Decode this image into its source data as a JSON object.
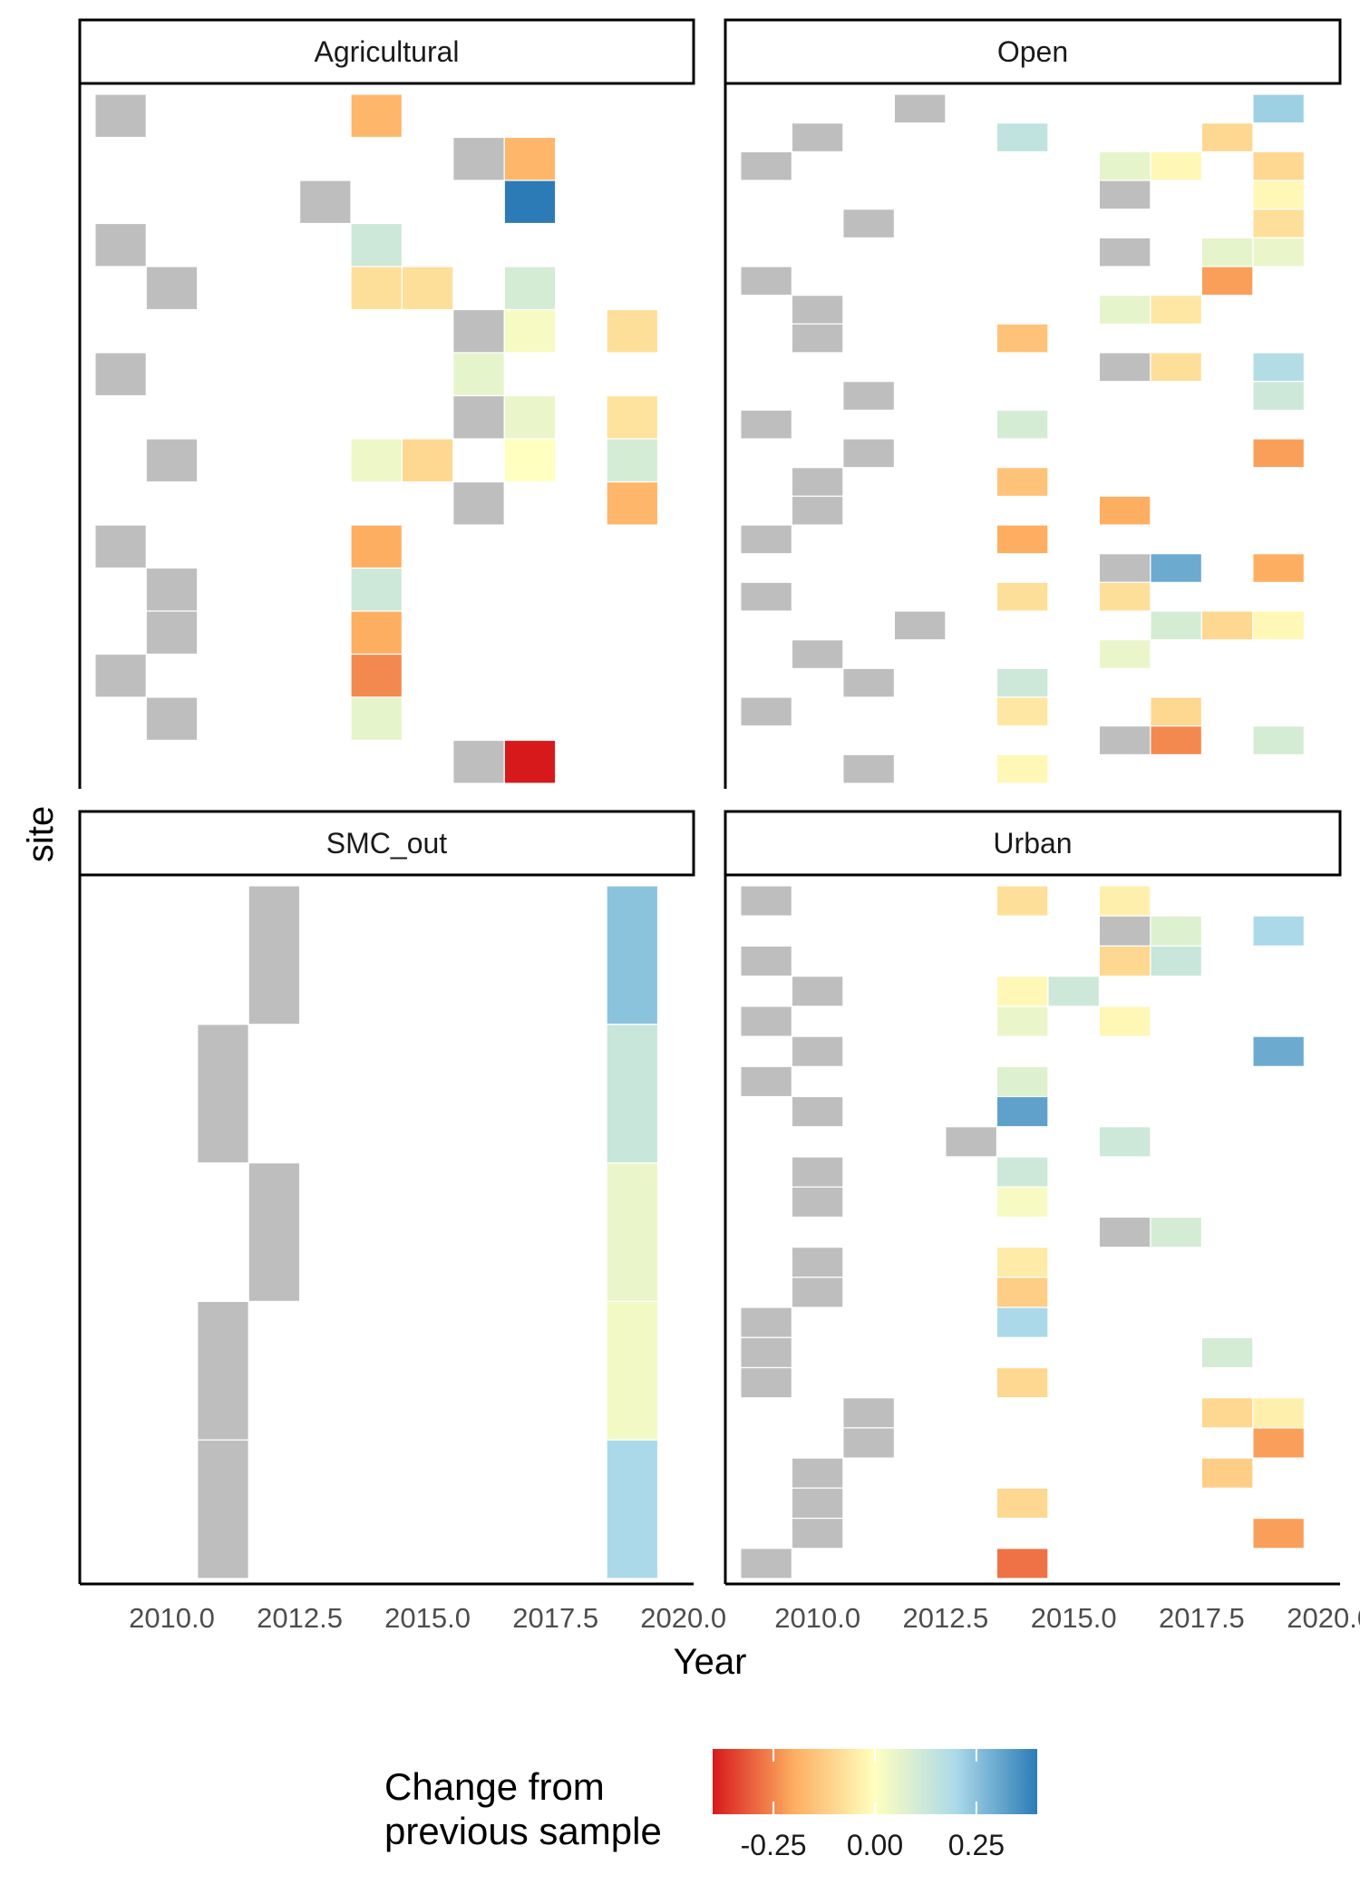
{
  "chart_data": {
    "type": "heatmap",
    "xlabel": "Year",
    "ylabel": "site",
    "x_ticks": [
      "2010.0",
      "2012.5",
      "2015.0",
      "2017.5",
      "2020.0"
    ],
    "x_tick_values": [
      2010,
      2012.5,
      2015,
      2017.5,
      2020
    ],
    "xlim": [
      2008.2,
      2020.2
    ],
    "tile_width_years": 1,
    "baseline_color": "#bebebe",
    "legend": {
      "title_lines": [
        "Change from",
        "previous sample"
      ],
      "ticks": [
        "-0.25",
        "0.00",
        "0.25"
      ],
      "tick_values": [
        -0.25,
        0,
        0.25
      ],
      "range": [
        -0.4,
        0.4
      ],
      "palette": [
        "#d7191c",
        "#fdae61",
        "#ffffbf",
        "#abd9e9",
        "#2c7bb6"
      ],
      "position": "bottom"
    },
    "panels": [
      {
        "label": "Agricultural",
        "n_rows": 16,
        "tiles": [
          {
            "row": 0,
            "year": 2009,
            "baseline": true
          },
          {
            "row": 0,
            "year": 2014,
            "value": -0.18
          },
          {
            "row": 1,
            "year": 2016,
            "baseline": true
          },
          {
            "row": 1,
            "year": 2017,
            "value": -0.18
          },
          {
            "row": 2,
            "year": 2013,
            "baseline": true
          },
          {
            "row": 2,
            "year": 2017,
            "value": 0.4
          },
          {
            "row": 3,
            "year": 2009,
            "baseline": true
          },
          {
            "row": 3,
            "year": 2014,
            "value": 0.12
          },
          {
            "row": 4,
            "year": 2010,
            "baseline": true
          },
          {
            "row": 4,
            "year": 2014,
            "value": -0.08
          },
          {
            "row": 4,
            "year": 2015,
            "value": -0.08
          },
          {
            "row": 4,
            "year": 2017,
            "value": 0.1
          },
          {
            "row": 5,
            "year": 2016,
            "baseline": true
          },
          {
            "row": 5,
            "year": 2017,
            "value": 0.02
          },
          {
            "row": 5,
            "year": 2019,
            "value": -0.08
          },
          {
            "row": 6,
            "year": 2009,
            "baseline": true
          },
          {
            "row": 6,
            "year": 2016,
            "value": 0.06
          },
          {
            "row": 7,
            "year": 2016,
            "baseline": true
          },
          {
            "row": 7,
            "year": 2017,
            "value": 0.05
          },
          {
            "row": 7,
            "year": 2019,
            "value": -0.07
          },
          {
            "row": 8,
            "year": 2010,
            "baseline": true
          },
          {
            "row": 8,
            "year": 2014,
            "value": 0.04
          },
          {
            "row": 8,
            "year": 2015,
            "value": -0.1
          },
          {
            "row": 8,
            "year": 2017,
            "value": 0.0
          },
          {
            "row": 8,
            "year": 2019,
            "value": 0.1
          },
          {
            "row": 9,
            "year": 2016,
            "baseline": true
          },
          {
            "row": 9,
            "year": 2019,
            "value": -0.18
          },
          {
            "row": 10,
            "year": 2009,
            "baseline": true
          },
          {
            "row": 10,
            "year": 2014,
            "value": -0.2
          },
          {
            "row": 11,
            "year": 2010,
            "baseline": true
          },
          {
            "row": 11,
            "year": 2014,
            "value": 0.12
          },
          {
            "row": 12,
            "year": 2010,
            "baseline": true
          },
          {
            "row": 12,
            "year": 2014,
            "value": -0.2
          },
          {
            "row": 13,
            "year": 2009,
            "baseline": true
          },
          {
            "row": 13,
            "year": 2014,
            "value": -0.25
          },
          {
            "row": 14,
            "year": 2010,
            "baseline": true
          },
          {
            "row": 14,
            "year": 2014,
            "value": 0.06
          },
          {
            "row": 15,
            "year": 2016,
            "baseline": true
          },
          {
            "row": 15,
            "year": 2017,
            "value": -0.4
          }
        ]
      },
      {
        "label": "Open",
        "n_rows": 24,
        "tiles": [
          {
            "row": 0,
            "year": 2012,
            "baseline": true
          },
          {
            "row": 0,
            "year": 2019,
            "value": 0.22
          },
          {
            "row": 1,
            "year": 2010,
            "baseline": true
          },
          {
            "row": 1,
            "year": 2014,
            "value": 0.15
          },
          {
            "row": 1,
            "year": 2018,
            "value": -0.1
          },
          {
            "row": 2,
            "year": 2009,
            "baseline": true
          },
          {
            "row": 2,
            "year": 2016,
            "value": 0.06
          },
          {
            "row": 2,
            "year": 2017,
            "value": -0.02
          },
          {
            "row": 2,
            "year": 2019,
            "value": -0.1
          },
          {
            "row": 3,
            "year": 2016,
            "baseline": true
          },
          {
            "row": 3,
            "year": 2019,
            "value": -0.02
          },
          {
            "row": 4,
            "year": 2011,
            "baseline": true
          },
          {
            "row": 4,
            "year": 2019,
            "value": -0.08
          },
          {
            "row": 5,
            "year": 2016,
            "baseline": true
          },
          {
            "row": 5,
            "year": 2018,
            "value": 0.06
          },
          {
            "row": 5,
            "year": 2019,
            "value": 0.05
          },
          {
            "row": 6,
            "year": 2009,
            "baseline": true
          },
          {
            "row": 6,
            "year": 2018,
            "value": -0.22
          },
          {
            "row": 7,
            "year": 2010,
            "baseline": true
          },
          {
            "row": 7,
            "year": 2016,
            "value": 0.06
          },
          {
            "row": 7,
            "year": 2017,
            "value": -0.06
          },
          {
            "row": 8,
            "year": 2010,
            "baseline": true
          },
          {
            "row": 8,
            "year": 2014,
            "value": -0.15
          },
          {
            "row": 9,
            "year": 2016,
            "baseline": true
          },
          {
            "row": 9,
            "year": 2017,
            "value": -0.08
          },
          {
            "row": 9,
            "year": 2019,
            "value": 0.18
          },
          {
            "row": 10,
            "year": 2011,
            "baseline": true
          },
          {
            "row": 10,
            "year": 2019,
            "value": 0.12
          },
          {
            "row": 11,
            "year": 2009,
            "baseline": true
          },
          {
            "row": 11,
            "year": 2014,
            "value": 0.1
          },
          {
            "row": 12,
            "year": 2011,
            "baseline": true
          },
          {
            "row": 12,
            "year": 2019,
            "value": -0.22
          },
          {
            "row": 13,
            "year": 2010,
            "baseline": true
          },
          {
            "row": 13,
            "year": 2014,
            "value": -0.15
          },
          {
            "row": 14,
            "year": 2010,
            "baseline": true
          },
          {
            "row": 14,
            "year": 2016,
            "value": -0.2
          },
          {
            "row": 15,
            "year": 2009,
            "baseline": true
          },
          {
            "row": 15,
            "year": 2014,
            "value": -0.2
          },
          {
            "row": 16,
            "year": 2016,
            "baseline": true
          },
          {
            "row": 16,
            "year": 2017,
            "value": 0.3
          },
          {
            "row": 16,
            "year": 2019,
            "value": -0.2
          },
          {
            "row": 17,
            "year": 2009,
            "baseline": true
          },
          {
            "row": 17,
            "year": 2014,
            "value": -0.08
          },
          {
            "row": 17,
            "year": 2016,
            "value": -0.08
          },
          {
            "row": 18,
            "year": 2012,
            "baseline": true
          },
          {
            "row": 18,
            "year": 2017,
            "value": 0.1
          },
          {
            "row": 18,
            "year": 2018,
            "value": -0.1
          },
          {
            "row": 18,
            "year": 2019,
            "value": -0.02
          },
          {
            "row": 19,
            "year": 2010,
            "baseline": true
          },
          {
            "row": 19,
            "year": 2016,
            "value": 0.05
          },
          {
            "row": 20,
            "year": 2011,
            "baseline": true
          },
          {
            "row": 20,
            "year": 2014,
            "value": 0.12
          },
          {
            "row": 21,
            "year": 2009,
            "baseline": true
          },
          {
            "row": 21,
            "year": 2014,
            "value": -0.06
          },
          {
            "row": 21,
            "year": 2017,
            "value": -0.1
          },
          {
            "row": 22,
            "year": 2016,
            "baseline": true
          },
          {
            "row": 22,
            "year": 2017,
            "value": -0.25
          },
          {
            "row": 22,
            "year": 2019,
            "value": 0.1
          },
          {
            "row": 23,
            "year": 2011,
            "baseline": true
          },
          {
            "row": 23,
            "year": 2014,
            "value": -0.02
          }
        ]
      },
      {
        "label": "SMC_out",
        "n_rows": 5,
        "tiles": [
          {
            "row": 0,
            "year": 2012,
            "baseline": true
          },
          {
            "row": 0,
            "year": 2019,
            "value": 0.25
          },
          {
            "row": 1,
            "year": 2011,
            "baseline": true
          },
          {
            "row": 1,
            "year": 2019,
            "value": 0.13
          },
          {
            "row": 2,
            "year": 2012,
            "baseline": true
          },
          {
            "row": 2,
            "year": 2019,
            "value": 0.05
          },
          {
            "row": 3,
            "year": 2011,
            "baseline": true
          },
          {
            "row": 3,
            "year": 2019,
            "value": 0.03
          },
          {
            "row": 4,
            "year": 2011,
            "baseline": true
          },
          {
            "row": 4,
            "year": 2019,
            "value": 0.2
          }
        ]
      },
      {
        "label": "Urban",
        "n_rows": 23,
        "tiles": [
          {
            "row": 0,
            "year": 2009,
            "baseline": true
          },
          {
            "row": 0,
            "year": 2014,
            "value": -0.08
          },
          {
            "row": 0,
            "year": 2016,
            "value": -0.04
          },
          {
            "row": 1,
            "year": 2016,
            "baseline": true
          },
          {
            "row": 1,
            "year": 2017,
            "value": 0.08
          },
          {
            "row": 1,
            "year": 2019,
            "value": 0.2
          },
          {
            "row": 2,
            "year": 2009,
            "baseline": true
          },
          {
            "row": 2,
            "year": 2016,
            "value": -0.1
          },
          {
            "row": 2,
            "year": 2017,
            "value": 0.13
          },
          {
            "row": 3,
            "year": 2010,
            "baseline": true
          },
          {
            "row": 3,
            "year": 2014,
            "value": -0.02
          },
          {
            "row": 3,
            "year": 2015,
            "value": 0.12
          },
          {
            "row": 4,
            "year": 2009,
            "baseline": true
          },
          {
            "row": 4,
            "year": 2014,
            "value": 0.05
          },
          {
            "row": 4,
            "year": 2016,
            "value": -0.02
          },
          {
            "row": 5,
            "year": 2010,
            "baseline": true
          },
          {
            "row": 5,
            "year": 2019,
            "value": 0.3
          },
          {
            "row": 6,
            "year": 2009,
            "baseline": true
          },
          {
            "row": 6,
            "year": 2014,
            "value": 0.08
          },
          {
            "row": 7,
            "year": 2010,
            "baseline": true
          },
          {
            "row": 7,
            "year": 2014,
            "value": 0.32
          },
          {
            "row": 8,
            "year": 2013,
            "baseline": true
          },
          {
            "row": 8,
            "year": 2016,
            "value": 0.12
          },
          {
            "row": 9,
            "year": 2010,
            "baseline": true
          },
          {
            "row": 9,
            "year": 2014,
            "value": 0.12
          },
          {
            "row": 10,
            "year": 2010,
            "baseline": true
          },
          {
            "row": 10,
            "year": 2014,
            "value": 0.02
          },
          {
            "row": 11,
            "year": 2016,
            "baseline": true
          },
          {
            "row": 11,
            "year": 2017,
            "value": 0.1
          },
          {
            "row": 12,
            "year": 2010,
            "baseline": true
          },
          {
            "row": 12,
            "year": 2014,
            "value": -0.05
          },
          {
            "row": 13,
            "year": 2010,
            "baseline": true
          },
          {
            "row": 13,
            "year": 2014,
            "value": -0.12
          },
          {
            "row": 14,
            "year": 2009,
            "baseline": true
          },
          {
            "row": 14,
            "year": 2014,
            "value": 0.2
          },
          {
            "row": 15,
            "year": 2009,
            "baseline": true
          },
          {
            "row": 15,
            "year": 2018,
            "value": 0.1
          },
          {
            "row": 16,
            "year": 2009,
            "baseline": true
          },
          {
            "row": 16,
            "year": 2014,
            "value": -0.1
          },
          {
            "row": 17,
            "year": 2011,
            "baseline": true
          },
          {
            "row": 17,
            "year": 2018,
            "value": -0.1
          },
          {
            "row": 17,
            "year": 2019,
            "value": -0.04
          },
          {
            "row": 18,
            "year": 2011,
            "baseline": true
          },
          {
            "row": 18,
            "year": 2019,
            "value": -0.22
          },
          {
            "row": 19,
            "year": 2010,
            "baseline": true
          },
          {
            "row": 19,
            "year": 2018,
            "value": -0.12
          },
          {
            "row": 20,
            "year": 2010,
            "baseline": true
          },
          {
            "row": 20,
            "year": 2014,
            "value": -0.1
          },
          {
            "row": 21,
            "year": 2010,
            "baseline": true
          },
          {
            "row": 21,
            "year": 2019,
            "value": -0.22
          },
          {
            "row": 22,
            "year": 2009,
            "baseline": true
          },
          {
            "row": 22,
            "year": 2014,
            "value": -0.28
          }
        ]
      }
    ]
  }
}
